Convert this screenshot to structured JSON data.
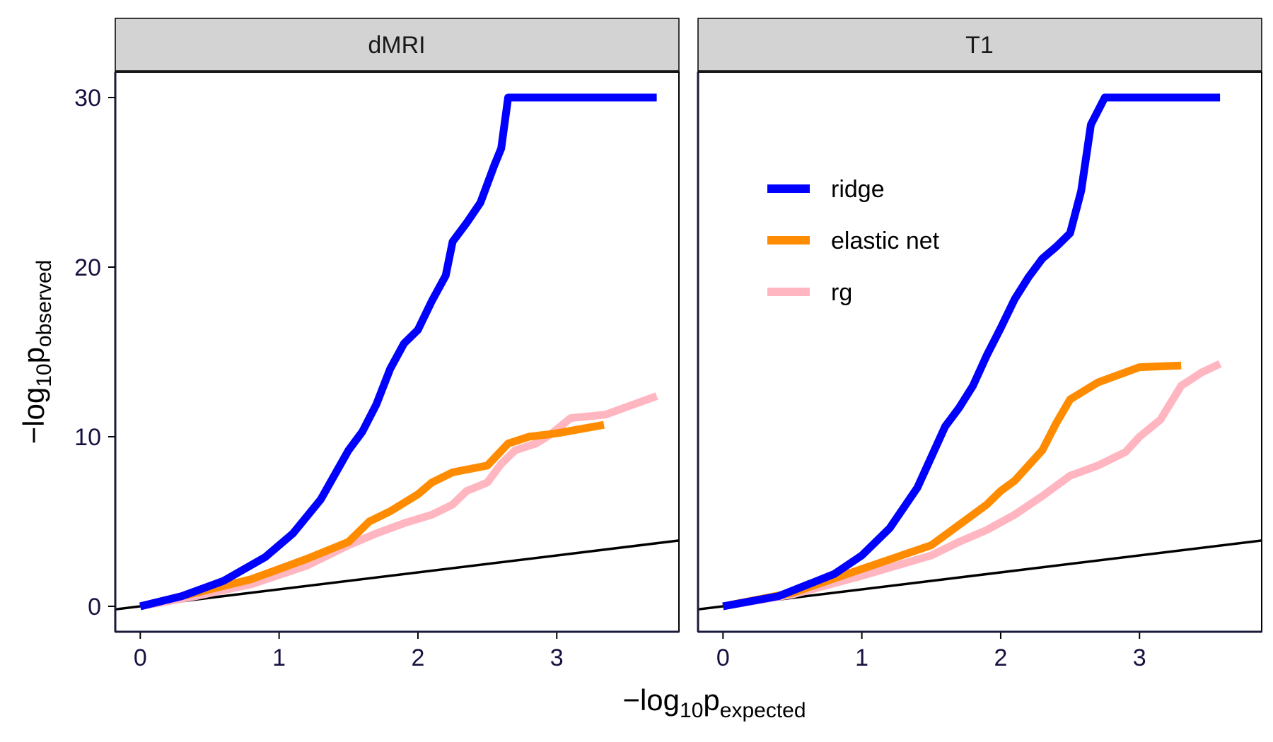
{
  "chart_data": [
    {
      "type": "line",
      "panel_title": "dMRI",
      "xlim": [
        -0.18,
        3.88
      ],
      "ylim": [
        -1.5,
        31.5
      ],
      "x_ticks": [
        "0",
        "1",
        "2",
        "3"
      ],
      "y_ticks": [
        "0",
        "10",
        "20",
        "30"
      ],
      "grid": false,
      "series": [
        {
          "name": "ridge",
          "color": "#0000ff",
          "points": [
            [
              0,
              0
            ],
            [
              0.3,
              0.6
            ],
            [
              0.6,
              1.5
            ],
            [
              0.9,
              2.9
            ],
            [
              1.1,
              4.3
            ],
            [
              1.3,
              6.3
            ],
            [
              1.5,
              9.2
            ],
            [
              1.6,
              10.3
            ],
            [
              1.7,
              11.9
            ],
            [
              1.8,
              14.0
            ],
            [
              1.9,
              15.5
            ],
            [
              2.0,
              16.3
            ],
            [
              2.1,
              18.0
            ],
            [
              2.2,
              19.5
            ],
            [
              2.25,
              21.5
            ],
            [
              2.35,
              22.6
            ],
            [
              2.45,
              23.8
            ],
            [
              2.55,
              26.0
            ],
            [
              2.6,
              27.0
            ],
            [
              2.65,
              30.0
            ],
            [
              3.72,
              30.0
            ]
          ]
        },
        {
          "name": "elastic net",
          "color": "#ff8c00",
          "points": [
            [
              0,
              0
            ],
            [
              0.4,
              0.8
            ],
            [
              0.8,
              1.6
            ],
            [
              1.2,
              2.8
            ],
            [
              1.5,
              3.8
            ],
            [
              1.65,
              5.0
            ],
            [
              1.8,
              5.6
            ],
            [
              1.9,
              6.1
            ],
            [
              2.0,
              6.6
            ],
            [
              2.1,
              7.3
            ],
            [
              2.25,
              7.9
            ],
            [
              2.5,
              8.3
            ],
            [
              2.65,
              9.6
            ],
            [
              2.8,
              10.0
            ],
            [
              3.0,
              10.2
            ],
            [
              3.34,
              10.7
            ]
          ]
        },
        {
          "name": "rg",
          "color": "#ffb6c1",
          "points": [
            [
              0,
              0
            ],
            [
              0.4,
              0.6
            ],
            [
              0.8,
              1.3
            ],
            [
              1.2,
              2.4
            ],
            [
              1.5,
              3.6
            ],
            [
              1.7,
              4.3
            ],
            [
              1.9,
              4.9
            ],
            [
              2.1,
              5.4
            ],
            [
              2.25,
              6.0
            ],
            [
              2.35,
              6.8
            ],
            [
              2.5,
              7.3
            ],
            [
              2.6,
              8.4
            ],
            [
              2.7,
              9.2
            ],
            [
              2.85,
              9.6
            ],
            [
              2.95,
              10.1
            ],
            [
              3.1,
              11.1
            ],
            [
              3.35,
              11.3
            ],
            [
              3.72,
              12.4
            ]
          ]
        }
      ]
    },
    {
      "type": "line",
      "panel_title": "T1",
      "xlim": [
        -0.18,
        3.88
      ],
      "ylim": [
        -1.5,
        31.5
      ],
      "x_ticks": [
        "0",
        "1",
        "2",
        "3"
      ],
      "y_ticks": [
        "0",
        "10",
        "20",
        "30"
      ],
      "grid": false,
      "series": [
        {
          "name": "ridge",
          "color": "#0000ff",
          "points": [
            [
              0,
              0
            ],
            [
              0.4,
              0.6
            ],
            [
              0.8,
              1.9
            ],
            [
              1.0,
              3.0
            ],
            [
              1.2,
              4.6
            ],
            [
              1.4,
              7.0
            ],
            [
              1.5,
              8.8
            ],
            [
              1.6,
              10.6
            ],
            [
              1.7,
              11.7
            ],
            [
              1.8,
              13.0
            ],
            [
              1.9,
              14.8
            ],
            [
              2.0,
              16.4
            ],
            [
              2.1,
              18.1
            ],
            [
              2.2,
              19.4
            ],
            [
              2.3,
              20.5
            ],
            [
              2.4,
              21.2
            ],
            [
              2.5,
              22.0
            ],
            [
              2.58,
              24.5
            ],
            [
              2.65,
              28.4
            ],
            [
              2.75,
              30.0
            ],
            [
              3.58,
              30.0
            ]
          ]
        },
        {
          "name": "elastic net",
          "color": "#ff8c00",
          "points": [
            [
              0,
              0
            ],
            [
              0.5,
              0.8
            ],
            [
              1.0,
              2.2
            ],
            [
              1.5,
              3.6
            ],
            [
              1.7,
              4.8
            ],
            [
              1.9,
              6.0
            ],
            [
              2.0,
              6.8
            ],
            [
              2.1,
              7.4
            ],
            [
              2.2,
              8.3
            ],
            [
              2.3,
              9.2
            ],
            [
              2.4,
              10.8
            ],
            [
              2.5,
              12.2
            ],
            [
              2.7,
              13.2
            ],
            [
              3.0,
              14.1
            ],
            [
              3.3,
              14.2
            ]
          ]
        },
        {
          "name": "rg",
          "color": "#ffb6c1",
          "points": [
            [
              0,
              0
            ],
            [
              0.5,
              0.7
            ],
            [
              1.0,
              1.8
            ],
            [
              1.5,
              3.0
            ],
            [
              1.7,
              3.8
            ],
            [
              1.9,
              4.5
            ],
            [
              2.1,
              5.4
            ],
            [
              2.3,
              6.5
            ],
            [
              2.5,
              7.7
            ],
            [
              2.7,
              8.3
            ],
            [
              2.9,
              9.1
            ],
            [
              3.0,
              10.0
            ],
            [
              3.15,
              11.0
            ],
            [
              3.3,
              13.0
            ],
            [
              3.45,
              13.8
            ],
            [
              3.58,
              14.3
            ]
          ]
        }
      ]
    }
  ],
  "reference_line": {
    "slope": 1,
    "intercept": 0,
    "color": "#000000"
  },
  "axis_labels": {
    "x": {
      "prefix": "−log",
      "sub": "10",
      "base": "p",
      "base_sub": "expected"
    },
    "y": {
      "prefix": "−log",
      "sub": "10",
      "base": "p",
      "base_sub": "observed"
    }
  },
  "legend": {
    "placement": "inside T1 panel, upper-left",
    "entries": [
      {
        "label": "ridge",
        "color": "#0000ff"
      },
      {
        "label": "elastic net",
        "color": "#ff8c00"
      },
      {
        "label": "rg",
        "color": "#ffb6c1"
      }
    ]
  },
  "colors": {
    "strip_fill": "#d3d3d3",
    "axis": "#1a1a3a",
    "tick_text": "#1a1040"
  }
}
